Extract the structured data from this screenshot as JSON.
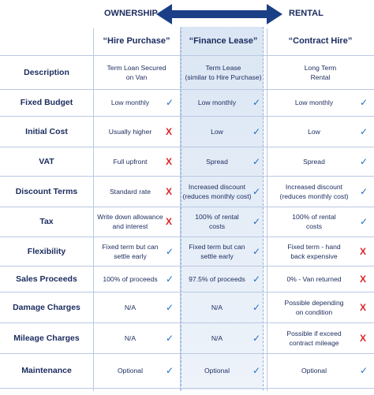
{
  "header": {
    "left": "OWNERSHIP",
    "right": "RENTAL"
  },
  "columns": [
    "“Hire Purchase”",
    "“Finance Lease”",
    "“Contract Hire”"
  ],
  "rows": [
    {
      "label": "Description",
      "cells": [
        {
          "text": "Term Loan Secured\non Van"
        },
        {
          "text": "Term Lease\n(similar to Hire Purchase)"
        },
        {
          "text": "Long Term\nRental"
        }
      ]
    },
    {
      "label": "Fixed Budget",
      "cells": [
        {
          "text": "Low monthly",
          "mark": "✓"
        },
        {
          "text": "Low monthly",
          "mark": "✓"
        },
        {
          "text": "Low monthly",
          "mark": "✓"
        }
      ]
    },
    {
      "label": "Initial Cost",
      "cells": [
        {
          "text": "Usually higher",
          "mark": "X"
        },
        {
          "text": "Low",
          "mark": "✓"
        },
        {
          "text": "Low",
          "mark": "✓"
        }
      ]
    },
    {
      "label": "VAT",
      "cells": [
        {
          "text": "Full upfront",
          "mark": "X"
        },
        {
          "text": "Spread",
          "mark": "✓"
        },
        {
          "text": "Spread",
          "mark": "✓"
        }
      ]
    },
    {
      "label": "Discount Terms",
      "cells": [
        {
          "text": "Standard rate",
          "mark": "X"
        },
        {
          "text": "Increased discount\n(reduces monthly cost)",
          "mark": "✓"
        },
        {
          "text": "Increased discount\n(reduces monthly cost)",
          "mark": "✓"
        }
      ]
    },
    {
      "label": "Tax",
      "cells": [
        {
          "text": "Write down allowance\nand interest",
          "mark": "X"
        },
        {
          "text": "100% of rental\ncosts",
          "mark": "✓"
        },
        {
          "text": "100% of rental\ncosts",
          "mark": "✓"
        }
      ]
    },
    {
      "label": "Flexibility",
      "cells": [
        {
          "text": "Fixed term but can\nsettle early",
          "mark": "✓"
        },
        {
          "text": "Fixed term but can\nsettle early",
          "mark": "✓"
        },
        {
          "text": "Fixed term - hand\nback expensive",
          "mark": "X"
        }
      ]
    },
    {
      "label": "Sales Proceeds",
      "cells": [
        {
          "text": "100% of proceeds",
          "mark": "✓"
        },
        {
          "text": "97.5% of proceeds",
          "mark": "✓"
        },
        {
          "text": "0% - Van returned",
          "mark": "X"
        }
      ]
    },
    {
      "label": "Damage Charges",
      "cells": [
        {
          "text": "N/A",
          "mark": "✓"
        },
        {
          "text": "N/A",
          "mark": "✓"
        },
        {
          "text": "Possible depending\non condition",
          "mark": "X"
        }
      ]
    },
    {
      "label": "Mileage Charges",
      "cells": [
        {
          "text": "N/A",
          "mark": "✓"
        },
        {
          "text": "N/A",
          "mark": "✓"
        },
        {
          "text": "Possible if exceed\ncontract mileage",
          "mark": "X"
        }
      ]
    },
    {
      "label": "Maintenance",
      "cells": [
        {
          "text": "Optional",
          "mark": "✓"
        },
        {
          "text": "Optional",
          "mark": "✓"
        },
        {
          "text": "Optional",
          "mark": "✓"
        }
      ]
    }
  ]
}
